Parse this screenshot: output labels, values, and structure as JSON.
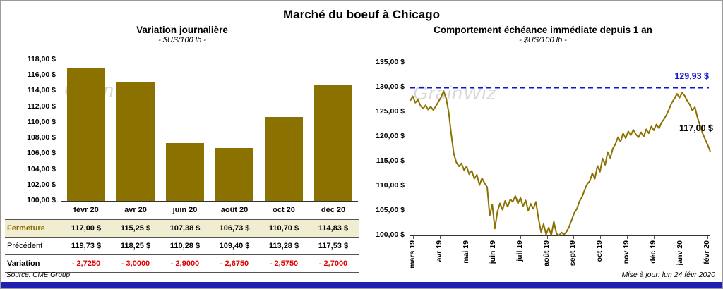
{
  "page": {
    "title": "Marché du boeuf à Chicago",
    "source": "Source: CME Group",
    "updated": "Mise à jour: lun 24 févr 2020",
    "watermark": "GrainWiz"
  },
  "colors": {
    "gold": "#8B7100",
    "gold_dark": "#8a6d00",
    "highlight_bg": "#F1EDD0",
    "negative_red": "#E00000",
    "high_blue": "#1414CC",
    "accent_blue": "#1F1FB4"
  },
  "chart_data": [
    {
      "type": "bar",
      "title": "Variation journalière",
      "subtitle": "- $US/100 lb -",
      "categories": [
        "févr 20",
        "avr 20",
        "juin 20",
        "août 20",
        "oct 20",
        "déc 20"
      ],
      "values": [
        117.0,
        115.25,
        107.38,
        106.73,
        110.7,
        114.83
      ],
      "ylim": [
        100,
        118
      ],
      "ytick_step": 2,
      "ytick_labels": [
        "118,00 $",
        "116,00 $",
        "114,00 $",
        "112,00 $",
        "110,00 $",
        "108,00 $",
        "106,00 $",
        "104,00 $",
        "102,00 $",
        "100,00 $"
      ],
      "grid": false,
      "table": {
        "rows": [
          {
            "label": "Fermeture",
            "highlight": true,
            "values": [
              "117,00 $",
              "115,25 $",
              "107,38 $",
              "106,73 $",
              "110,70 $",
              "114,83 $"
            ]
          },
          {
            "label": "Précédent",
            "highlight": false,
            "values": [
              "119,73 $",
              "118,25 $",
              "110,28 $",
              "109,40 $",
              "113,28 $",
              "117,53 $"
            ]
          },
          {
            "label": "Variation",
            "highlight": false,
            "bold": true,
            "negative": true,
            "values": [
              "- 2,7250",
              "- 3,0000",
              "- 2,9000",
              "- 2,6750",
              "- 2,5750",
              "- 2,7000"
            ]
          }
        ]
      }
    },
    {
      "type": "line",
      "title": "Comportement échéance immédiate depuis 1 an",
      "subtitle": "- $US/100 lb -",
      "x_labels": [
        "mars 19",
        "avr 19",
        "mai 19",
        "juin 19",
        "juil 19",
        "août 19",
        "sept 19",
        "oct 19",
        "nov 19",
        "déc 19",
        "janv 20",
        "févr 20"
      ],
      "ylim": [
        100,
        135
      ],
      "ytick_step": 5,
      "ytick_labels": [
        "135,00 $",
        "130,00 $",
        "125,00 $",
        "120,00 $",
        "115,00 $",
        "110,00 $",
        "105,00 $",
        "100,00 $"
      ],
      "grid": false,
      "high_line": {
        "value": 129.93,
        "label": "129,93 $"
      },
      "last_point_label": "117,00 $",
      "values": [
        127.3,
        128.2,
        126.9,
        127.5,
        126.3,
        125.7,
        126.4,
        125.5,
        126.1,
        125.4,
        126.2,
        127.1,
        128.0,
        129.2,
        127.8,
        125.0,
        120.5,
        116.5,
        114.8,
        114.0,
        114.6,
        113.2,
        114.0,
        112.4,
        113.1,
        111.5,
        112.3,
        110.2,
        111.6,
        110.6,
        109.8,
        104.0,
        106.3,
        101.4,
        104.8,
        106.5,
        105.2,
        107.0,
        105.8,
        107.3,
        106.8,
        108.0,
        106.5,
        107.6,
        105.9,
        107.1,
        105.0,
        106.4,
        105.4,
        106.8,
        103.5,
        100.7,
        102.3,
        100.2,
        101.6,
        100.0,
        102.8,
        100.4,
        100.0,
        100.6,
        100.2,
        100.8,
        101.8,
        103.2,
        104.6,
        105.4,
        106.9,
        107.8,
        109.2,
        110.4,
        111.0,
        112.6,
        111.5,
        114.1,
        112.9,
        115.6,
        114.3,
        116.9,
        115.7,
        117.6,
        118.5,
        119.9,
        119.0,
        120.7,
        119.7,
        121.1,
        120.3,
        121.4,
        120.5,
        119.9,
        120.9,
        120.0,
        121.5,
        120.7,
        122.1,
        121.3,
        122.5,
        121.7,
        122.9,
        123.6,
        124.5,
        125.7,
        126.9,
        127.7,
        128.7,
        127.9,
        128.9,
        128.3,
        127.3,
        126.5,
        125.3,
        126.0,
        123.9,
        122.3,
        120.7,
        119.5,
        118.3,
        117.0
      ]
    }
  ]
}
